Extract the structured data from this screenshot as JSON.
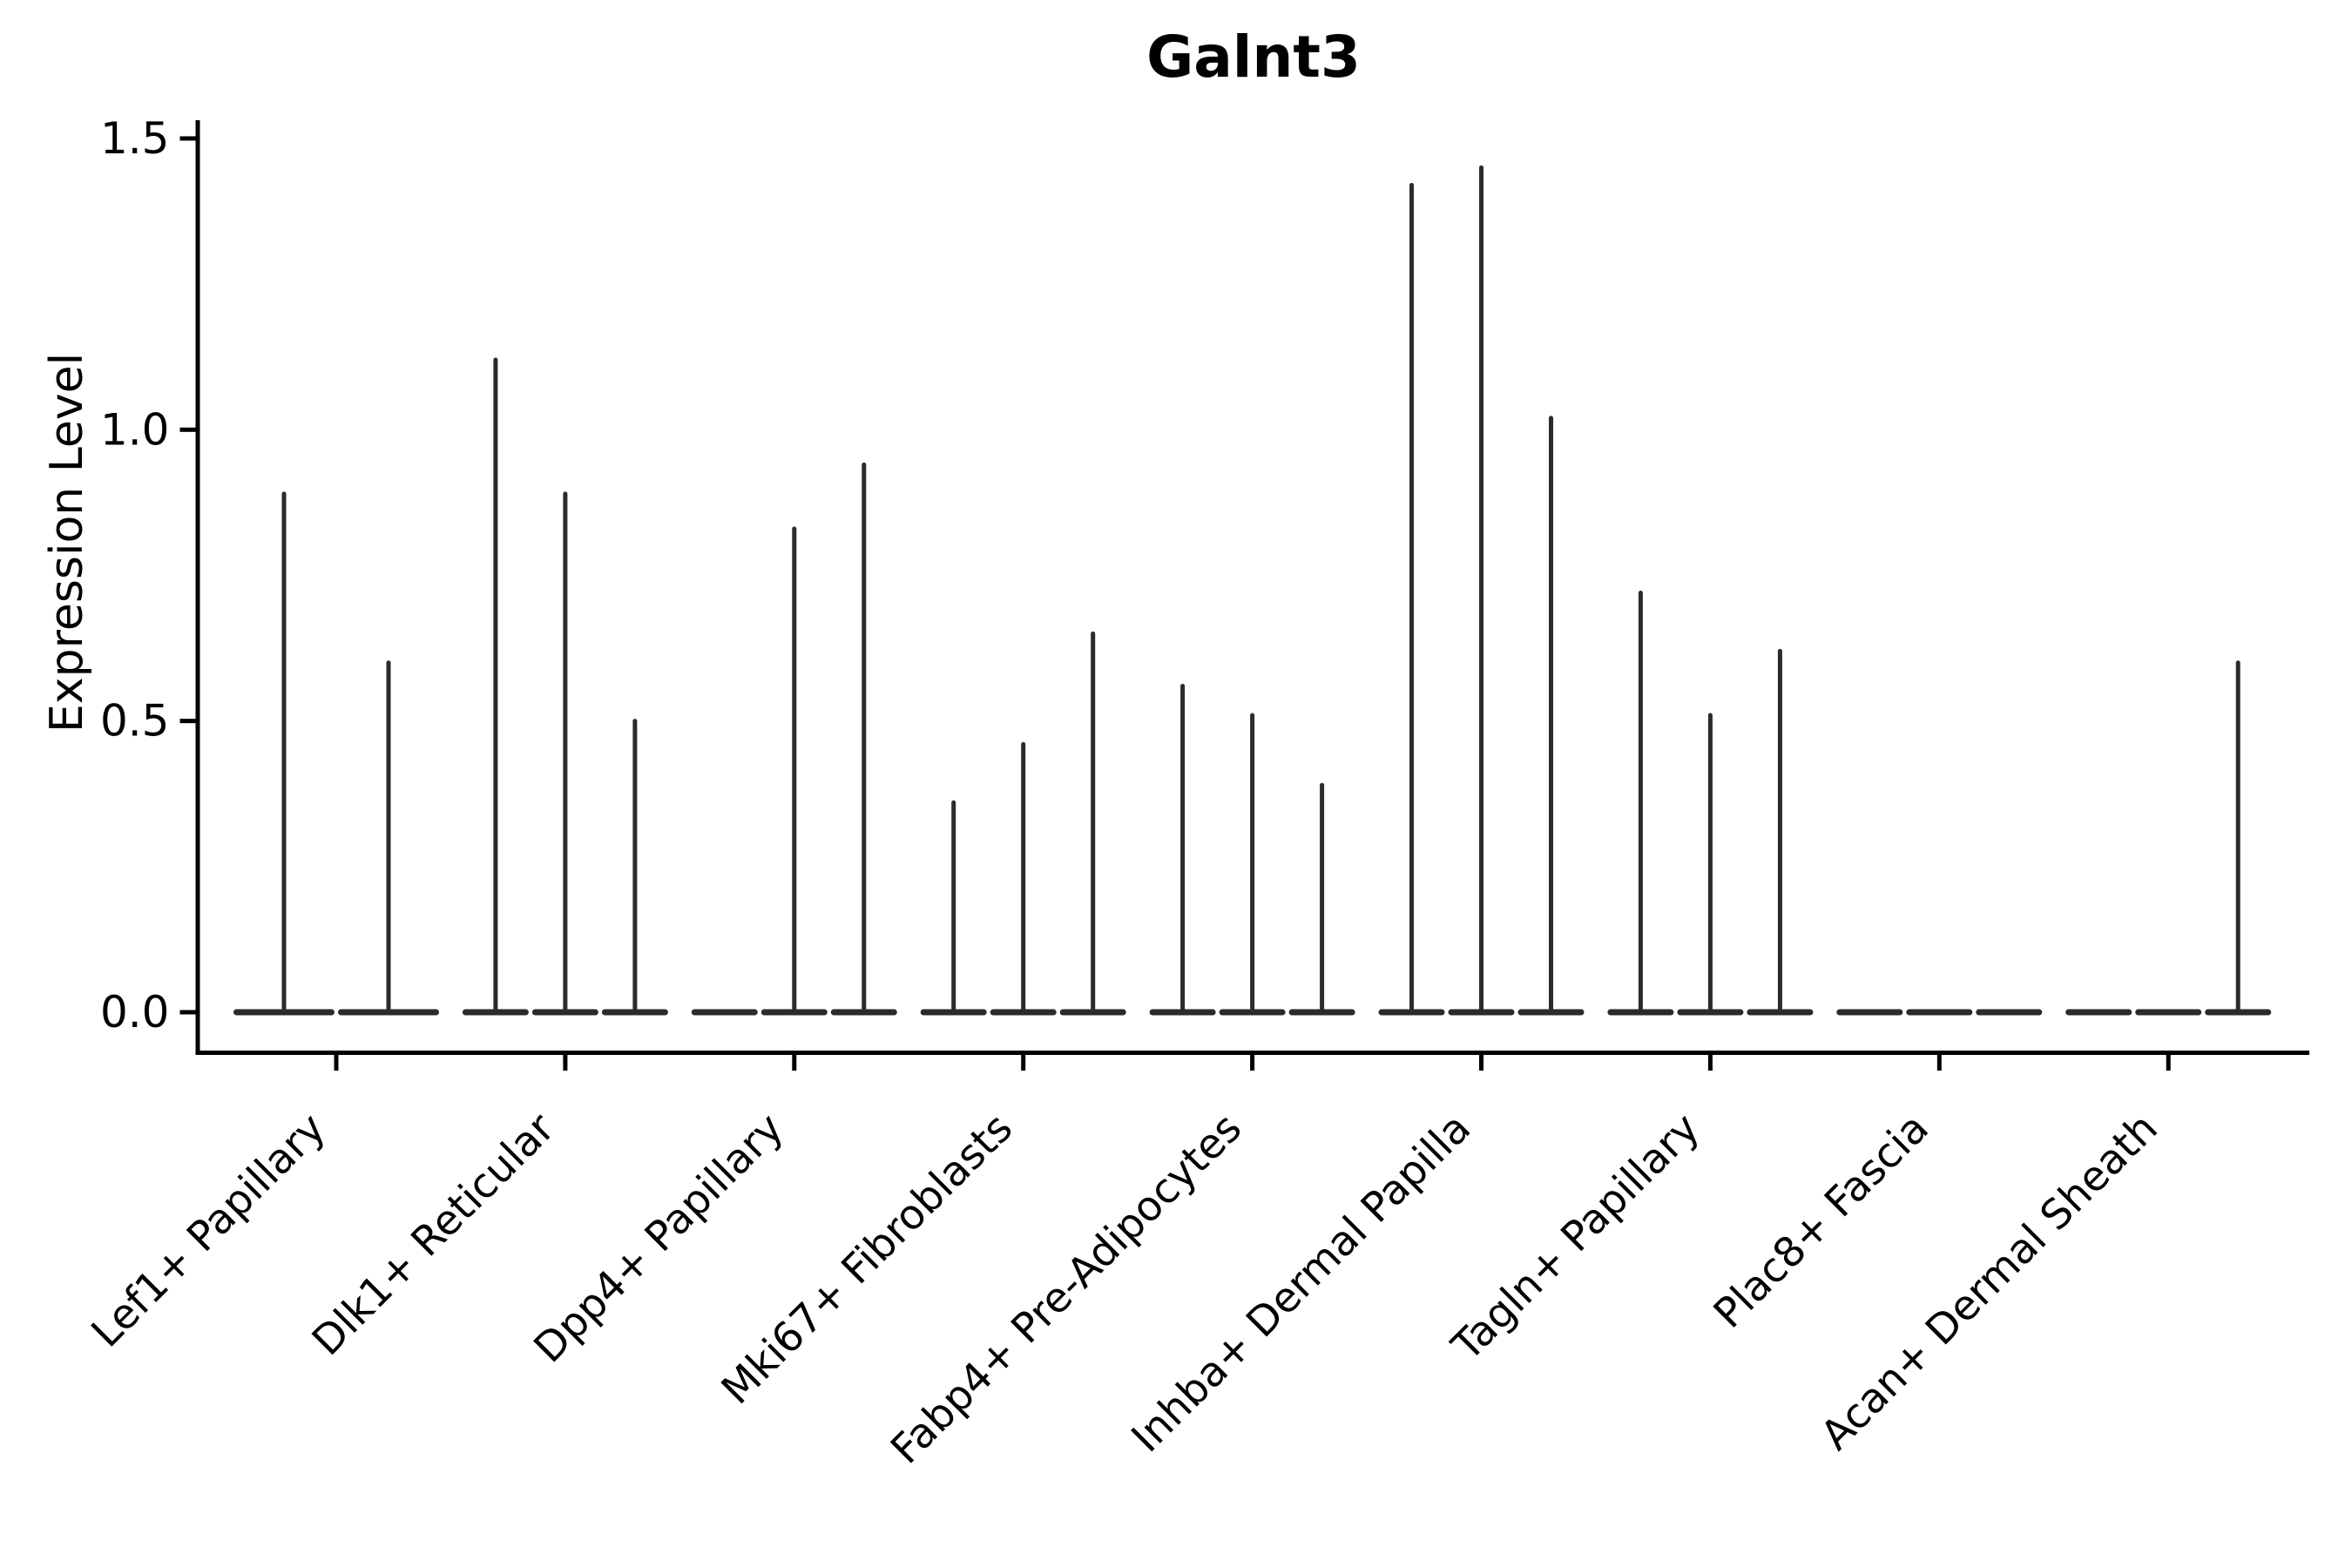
{
  "chart_data": {
    "type": "violin",
    "title": "Galnt3",
    "ylabel": "Expression Level",
    "xlabel": "",
    "ylim": [
      0,
      1.5
    ],
    "yticks": [
      0.0,
      0.5,
      1.0,
      1.5
    ],
    "ytick_labels": [
      "0.0",
      "0.5",
      "1.0",
      "1.5"
    ],
    "grid": false,
    "legend": false,
    "categories": [
      "Lef1+ Papillary",
      "Dlk1+ Reticular",
      "Dpp4+ Papillary",
      "Mki67+ Fibroblasts",
      "Fabp4+ Pre-Adipocytes",
      "Inhba+ Dermal Papilla",
      "Tagln+ Papillary",
      "Plac8+ Fascia",
      "Acan+ Dermal Sheath"
    ],
    "groups": [
      {
        "category": "Lef1+ Papillary",
        "violin_max_values": [
          0.89,
          0.6
        ]
      },
      {
        "category": "Dlk1+ Reticular",
        "violin_max_values": [
          1.12,
          0.89,
          0.5
        ]
      },
      {
        "category": "Dpp4+ Papillary",
        "violin_max_values": [
          0.0,
          0.83,
          0.94
        ]
      },
      {
        "category": "Mki67+ Fibroblasts",
        "violin_max_values": [
          0.36,
          0.46,
          0.65
        ]
      },
      {
        "category": "Fabp4+ Pre-Adipocytes",
        "violin_max_values": [
          0.56,
          0.51,
          0.39
        ]
      },
      {
        "category": "Inhba+ Dermal Papilla",
        "violin_max_values": [
          1.42,
          1.45,
          1.02
        ]
      },
      {
        "category": "Tagln+ Papillary",
        "violin_max_values": [
          0.72,
          0.51,
          0.62
        ]
      },
      {
        "category": "Plac8+ Fascia",
        "violin_max_values": [
          0.0,
          0.0,
          0.0
        ]
      },
      {
        "category": "Acan+ Dermal Sheath",
        "violin_max_values": [
          0.0,
          0.0,
          0.6
        ]
      }
    ],
    "description": "Violin plot of Galnt3 expression; all violins collapse to a flat base at 0 with a thin tail up to the max expression value.",
    "colors": {
      "violin_ink": "#2b2b2b",
      "axis_ink": "#000000",
      "text_ink": "#000000",
      "background": "#ffffff"
    }
  }
}
